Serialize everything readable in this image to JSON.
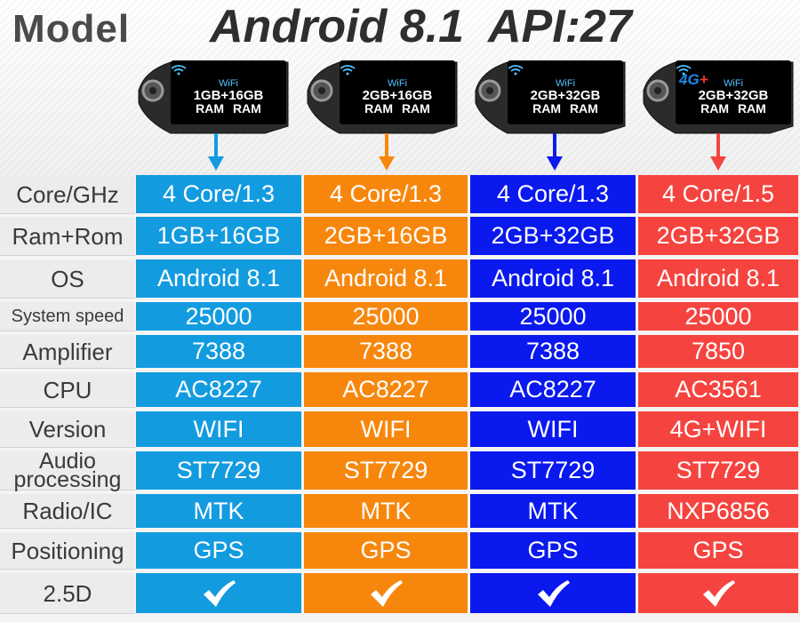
{
  "header": {
    "model_label": "Model",
    "android_label": "Android 8.1  API:27"
  },
  "colors": {
    "col1": "#139be0",
    "col2": "#f7870c",
    "col3": "#0a19ee",
    "col4": "#f5443f"
  },
  "devices": [
    {
      "wifi": "WiFi",
      "spec": "1GB+16GB",
      "sub": "RAM RAM",
      "badge": ""
    },
    {
      "wifi": "WiFi",
      "spec": "2GB+16GB",
      "sub": "RAM RAM",
      "badge": ""
    },
    {
      "wifi": "WiFi",
      "spec": "2GB+32GB",
      "sub": "RAM RAM",
      "badge": ""
    },
    {
      "wifi": "WiFi",
      "spec": "2GB+32GB",
      "sub": "RAM RAM",
      "badge": "4G+"
    }
  ],
  "table": {
    "rows": [
      {
        "label": "Core/GHz",
        "values": [
          "4 Core/1.3",
          "4 Core/1.3",
          "4 Core/1.3",
          "4 Core/1.5"
        ]
      },
      {
        "label": "Ram+Rom",
        "values": [
          "1GB+16GB",
          "2GB+16GB",
          "2GB+32GB",
          "2GB+32GB"
        ]
      },
      {
        "label": "OS",
        "values": [
          "Android 8.1",
          "Android 8.1",
          "Android 8.1",
          "Android 8.1"
        ]
      },
      {
        "label": "System speed",
        "values": [
          "25000",
          "25000",
          "25000",
          "25000"
        ]
      },
      {
        "label": "Amplifier",
        "values": [
          "7388",
          "7388",
          "7388",
          "7850"
        ]
      },
      {
        "label": "CPU",
        "values": [
          "AC8227",
          "AC8227",
          "AC8227",
          "AC3561"
        ]
      },
      {
        "label": "Version",
        "values": [
          "WIFI",
          "WIFI",
          "WIFI",
          "4G+WIFI"
        ]
      },
      {
        "label": "Audio processing",
        "values": [
          "ST7729",
          "ST7729",
          "ST7729",
          "ST7729"
        ]
      },
      {
        "label": "Radio/IC",
        "values": [
          "MTK",
          "MTK",
          "MTK",
          "NXP6856"
        ]
      },
      {
        "label": "Positioning",
        "values": [
          "GPS",
          "GPS",
          "GPS",
          "GPS"
        ]
      },
      {
        "label": "2.5D",
        "values": [
          "check-icon",
          "check-icon",
          "check-icon",
          "check-icon"
        ]
      }
    ]
  }
}
